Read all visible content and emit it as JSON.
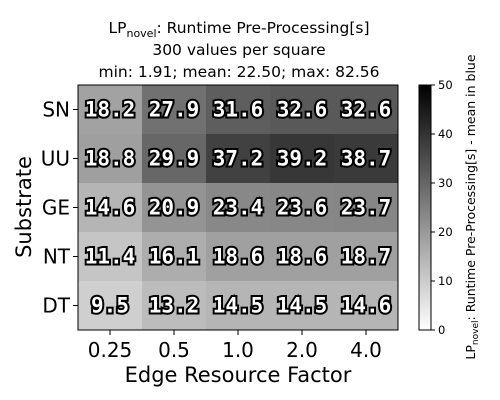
{
  "chart_data": {
    "type": "heatmap",
    "title_lines": [
      {
        "main": "LP",
        "sub": "novel",
        "rest": ": Runtime Pre-Processing[s]"
      },
      "300 values per square",
      "min: 1.91; mean: 22.50; max: 82.56"
    ],
    "xlabel": "Edge Resource Factor",
    "ylabel": "Substrate",
    "x_categories": [
      "0.25",
      "0.5",
      "1.0",
      "2.0",
      "4.0"
    ],
    "y_categories": [
      "SN",
      "UU",
      "GE",
      "NT",
      "DT"
    ],
    "values": [
      [
        18.2,
        27.9,
        31.6,
        32.6,
        32.6
      ],
      [
        18.8,
        29.9,
        37.2,
        39.2,
        38.7
      ],
      [
        14.6,
        20.9,
        23.4,
        23.6,
        23.7
      ],
      [
        11.4,
        16.1,
        18.6,
        18.6,
        18.7
      ],
      [
        9.5,
        13.2,
        14.5,
        14.5,
        14.6
      ]
    ],
    "value_labels": [
      [
        "18.2",
        "27.9",
        "31.6",
        "32.6",
        "32.6"
      ],
      [
        "18.8",
        "29.9",
        "37.2",
        "39.2",
        "38.7"
      ],
      [
        "14.6",
        "20.9",
        "23.4",
        "23.6",
        "23.7"
      ],
      [
        "11.4",
        "16.1",
        "18.6",
        "18.6",
        "18.7"
      ],
      [
        " 9.5",
        "13.2",
        "14.5",
        "14.5",
        "14.6"
      ]
    ],
    "colorbar": {
      "range": [
        0,
        50
      ],
      "ticks": [
        "0",
        "10",
        "20",
        "30",
        "40",
        "50"
      ],
      "label_main": "LP",
      "label_sub": "novel",
      "label_rest": ": Runtime Pre-Processing[s] - mean in blue",
      "colormap": "Greys"
    }
  }
}
